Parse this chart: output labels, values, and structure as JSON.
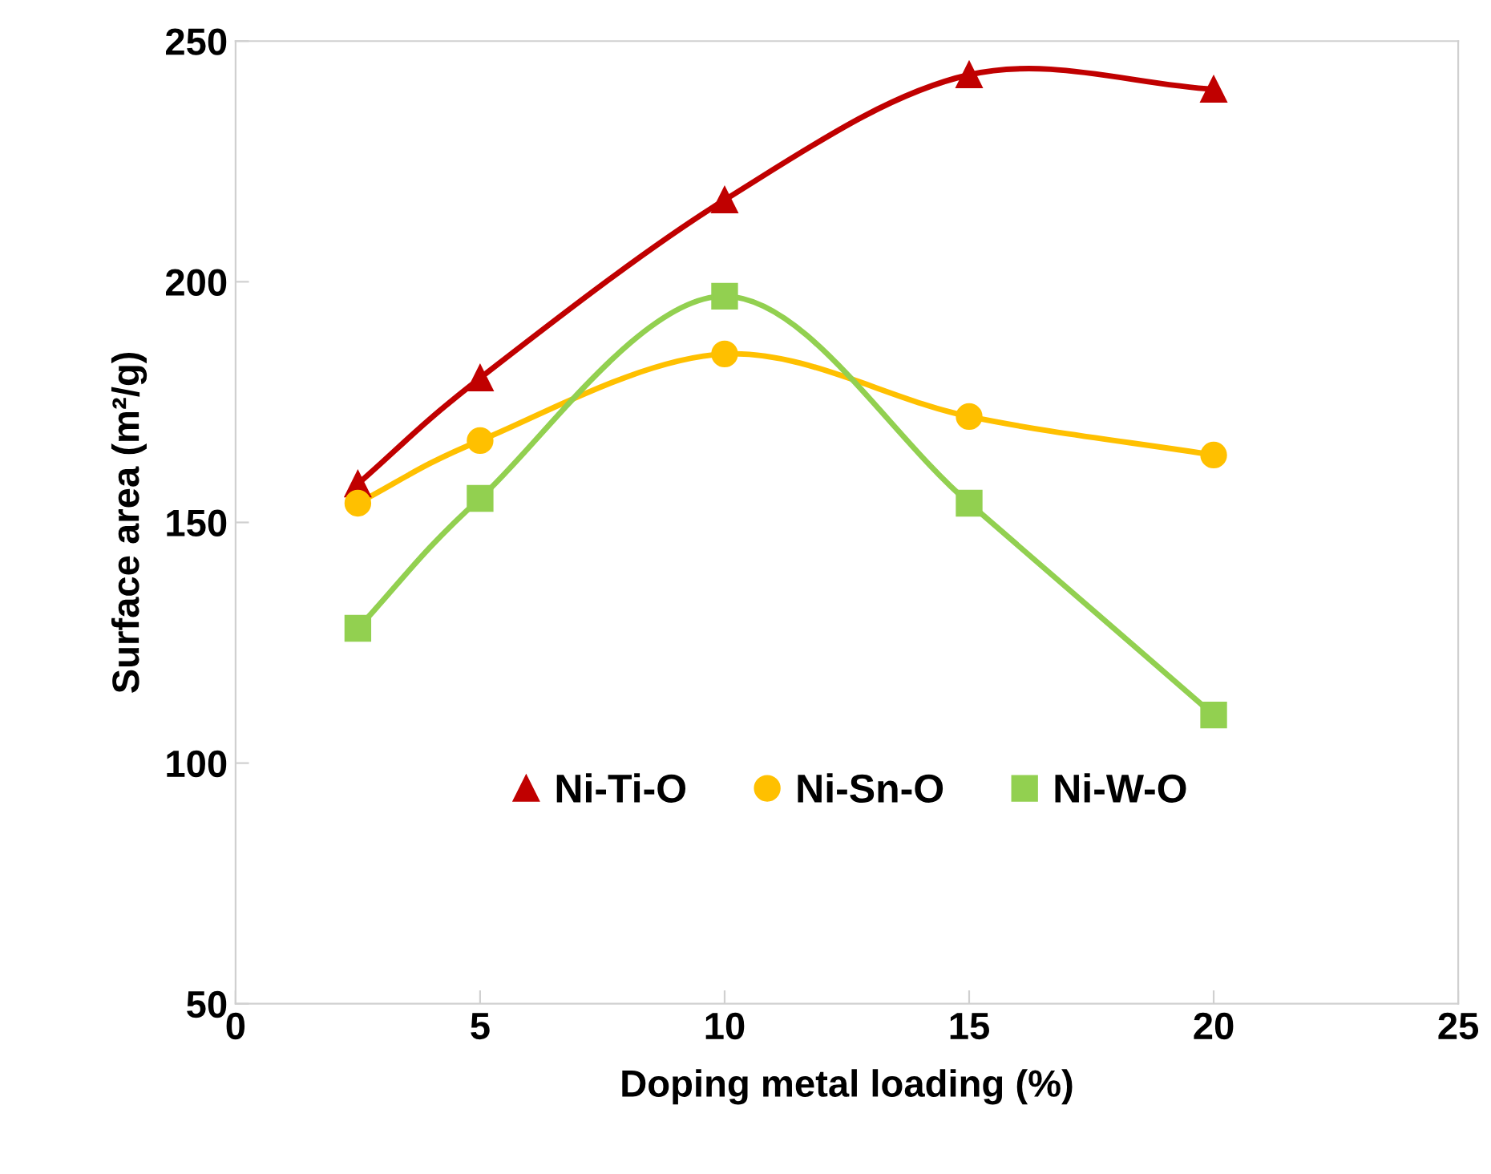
{
  "chart_data": {
    "type": "line",
    "xlabel": "Doping metal loading (%)",
    "ylabel": "Surface area (m²/g)",
    "x": [
      2.5,
      5,
      10,
      15,
      20
    ],
    "series": [
      {
        "name": "Ni-Ti-O",
        "color": "#c00000",
        "marker": "triangle",
        "values": [
          158,
          180,
          217,
          243,
          240
        ]
      },
      {
        "name": "Ni-Sn-O",
        "color": "#ffc000",
        "marker": "circle",
        "values": [
          154,
          167,
          185,
          172,
          164
        ]
      },
      {
        "name": "Ni-W-O",
        "color": "#92d050",
        "marker": "square",
        "values": [
          128,
          155,
          197,
          154,
          110
        ]
      }
    ],
    "xlim": [
      0,
      25
    ],
    "xticks": [
      0,
      5,
      10,
      15,
      20,
      25
    ],
    "ylim": [
      50,
      250
    ],
    "yticks": [
      50,
      100,
      150,
      200,
      250
    ],
    "grid": false,
    "legend": "bottom",
    "line_style": "solid"
  }
}
